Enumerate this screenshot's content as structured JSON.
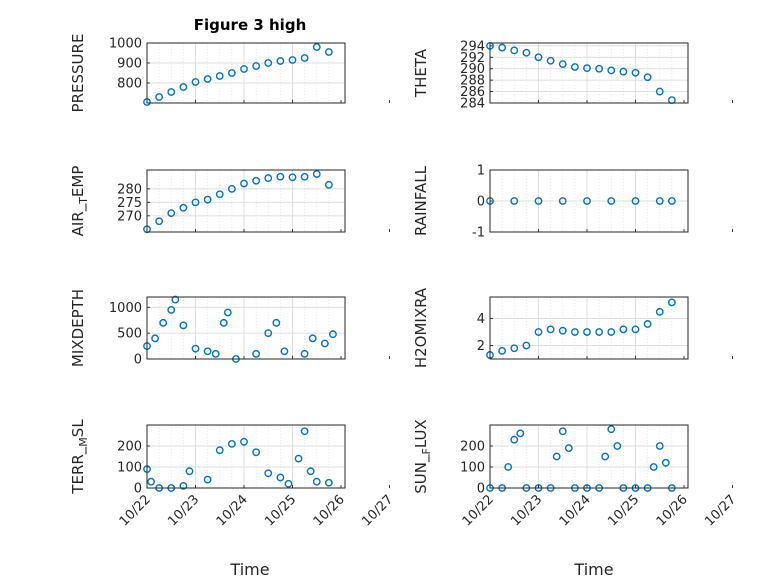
{
  "figure": {
    "title": "Figure 3 high",
    "xlabel": "Time",
    "x_tick_labels": [
      "10/22",
      "10/23",
      "10/24",
      "10/25",
      "10/26",
      "10/27"
    ],
    "marker_color": "#0072BD"
  },
  "chart_data": [
    {
      "type": "scatter",
      "title": "Figure 3 high",
      "ylabel": "PRESSURE",
      "ylim": [
        700,
        1000
      ],
      "yticks": [
        800,
        900,
        1000
      ],
      "grid": true,
      "x": [
        "10/22 00:00",
        "10/22 06:00",
        "10/22 12:00",
        "10/22 18:00",
        "10/23 00:00",
        "10/23 06:00",
        "10/23 12:00",
        "10/23 18:00",
        "10/24 00:00",
        "10/24 06:00",
        "10/24 12:00",
        "10/24 18:00",
        "10/25 00:00",
        "10/25 06:00",
        "10/25 12:00",
        "10/25 18:00"
      ],
      "y": [
        705,
        730,
        755,
        780,
        805,
        820,
        835,
        850,
        870,
        885,
        900,
        910,
        915,
        925,
        980,
        955
      ]
    },
    {
      "type": "scatter",
      "ylabel": "THETA",
      "ylim": [
        284,
        294.5
      ],
      "yticks": [
        284,
        286,
        288,
        290,
        292,
        294
      ],
      "grid": true,
      "x": [
        "10/22 00:00",
        "10/22 06:00",
        "10/22 12:00",
        "10/22 18:00",
        "10/23 00:00",
        "10/23 06:00",
        "10/23 12:00",
        "10/23 18:00",
        "10/24 00:00",
        "10/24 06:00",
        "10/24 12:00",
        "10/24 18:00",
        "10/25 00:00",
        "10/25 06:00",
        "10/25 12:00",
        "10/25 18:00"
      ],
      "y": [
        294,
        293.7,
        293.2,
        292.8,
        292.0,
        291.4,
        290.8,
        290.3,
        290.1,
        290.0,
        289.7,
        289.5,
        289.3,
        288.5,
        286.0,
        284.5
      ]
    },
    {
      "type": "scatter",
      "ylabel": "AIR_TEMP",
      "ylim": [
        264,
        287
      ],
      "yticks": [
        270,
        275,
        280
      ],
      "grid": true,
      "x": [
        "10/22 00:00",
        "10/22 06:00",
        "10/22 12:00",
        "10/22 18:00",
        "10/23 00:00",
        "10/23 06:00",
        "10/23 12:00",
        "10/23 18:00",
        "10/24 00:00",
        "10/24 06:00",
        "10/24 12:00",
        "10/24 18:00",
        "10/25 00:00",
        "10/25 06:00",
        "10/25 12:00",
        "10/25 18:00"
      ],
      "y": [
        265,
        268,
        271,
        273,
        275,
        276,
        278,
        280,
        282,
        283,
        284,
        284.5,
        284.3,
        284.5,
        285.5,
        281.5
      ]
    },
    {
      "type": "scatter",
      "ylabel": "RAINFALL",
      "ylim": [
        -1,
        1
      ],
      "yticks": [
        -1,
        0,
        1
      ],
      "grid": true,
      "x": [
        "10/22 00:00",
        "10/22 12:00",
        "10/23 00:00",
        "10/23 12:00",
        "10/24 00:00",
        "10/24 12:00",
        "10/25 00:00",
        "10/25 12:00",
        "10/25 18:00"
      ],
      "y": [
        0,
        0,
        0,
        0,
        0,
        0,
        0,
        0,
        0
      ]
    },
    {
      "type": "scatter",
      "ylabel": "MIXDEPTH",
      "ylim": [
        0,
        1200
      ],
      "yticks": [
        0,
        500,
        1000
      ],
      "grid": true,
      "x": [
        "10/22 00:00",
        "10/22 04:00",
        "10/22 08:00",
        "10/22 12:00",
        "10/22 14:00",
        "10/22 18:00",
        "10/23 00:00",
        "10/23 06:00",
        "10/23 10:00",
        "10/23 14:00",
        "10/23 16:00",
        "10/23 20:00",
        "10/24 06:00",
        "10/24 12:00",
        "10/24 16:00",
        "10/24 20:00",
        "10/25 06:00",
        "10/25 10:00",
        "10/25 16:00",
        "10/25 20:00"
      ],
      "y": [
        250,
        400,
        700,
        950,
        1150,
        650,
        200,
        150,
        100,
        700,
        900,
        0,
        100,
        500,
        700,
        150,
        100,
        400,
        300,
        480
      ]
    },
    {
      "type": "scatter",
      "ylabel": "H2OMIXRA",
      "ylim": [
        1,
        5.6
      ],
      "yticks": [
        2,
        4
      ],
      "grid": true,
      "x": [
        "10/22 00:00",
        "10/22 06:00",
        "10/22 12:00",
        "10/22 18:00",
        "10/23 00:00",
        "10/23 06:00",
        "10/23 12:00",
        "10/23 18:00",
        "10/24 00:00",
        "10/24 06:00",
        "10/24 12:00",
        "10/24 18:00",
        "10/25 00:00",
        "10/25 06:00",
        "10/25 12:00",
        "10/25 18:00"
      ],
      "y": [
        1.3,
        1.6,
        1.8,
        2.0,
        3.0,
        3.2,
        3.1,
        3.0,
        3.0,
        3.0,
        3.0,
        3.2,
        3.2,
        3.6,
        4.5,
        5.2
      ]
    },
    {
      "type": "scatter",
      "ylabel": "TERR_MSL",
      "ylim": [
        0,
        300
      ],
      "yticks": [
        0,
        100,
        200
      ],
      "grid": true,
      "x": [
        "10/22 00:00",
        "10/22 02:00",
        "10/22 06:00",
        "10/22 12:00",
        "10/22 18:00",
        "10/22 21:00",
        "10/23 06:00",
        "10/23 12:00",
        "10/23 18:00",
        "10/24 00:00",
        "10/24 06:00",
        "10/24 12:00",
        "10/24 18:00",
        "10/24 22:00",
        "10/25 03:00",
        "10/25 06:00",
        "10/25 09:00",
        "10/25 12:00",
        "10/25 18:00"
      ],
      "y": [
        90,
        30,
        0,
        0,
        10,
        80,
        40,
        180,
        210,
        220,
        170,
        70,
        50,
        20,
        140,
        270,
        80,
        30,
        25
      ]
    },
    {
      "type": "scatter",
      "ylabel": "SUN_FLUX",
      "ylim": [
        0,
        300
      ],
      "yticks": [
        0,
        100,
        200
      ],
      "grid": true,
      "x": [
        "10/22 00:00",
        "10/22 06:00",
        "10/22 09:00",
        "10/22 12:00",
        "10/22 15:00",
        "10/22 18:00",
        "10/23 00:00",
        "10/23 06:00",
        "10/23 09:00",
        "10/23 12:00",
        "10/23 15:00",
        "10/23 18:00",
        "10/24 00:00",
        "10/24 06:00",
        "10/24 09:00",
        "10/24 12:00",
        "10/24 15:00",
        "10/24 18:00",
        "10/25 00:00",
        "10/25 06:00",
        "10/25 09:00",
        "10/25 12:00",
        "10/25 15:00",
        "10/25 18:00"
      ],
      "y": [
        0,
        0,
        100,
        230,
        260,
        0,
        0,
        0,
        150,
        270,
        190,
        0,
        0,
        0,
        150,
        280,
        200,
        0,
        0,
        0,
        100,
        200,
        120,
        0
      ]
    }
  ]
}
